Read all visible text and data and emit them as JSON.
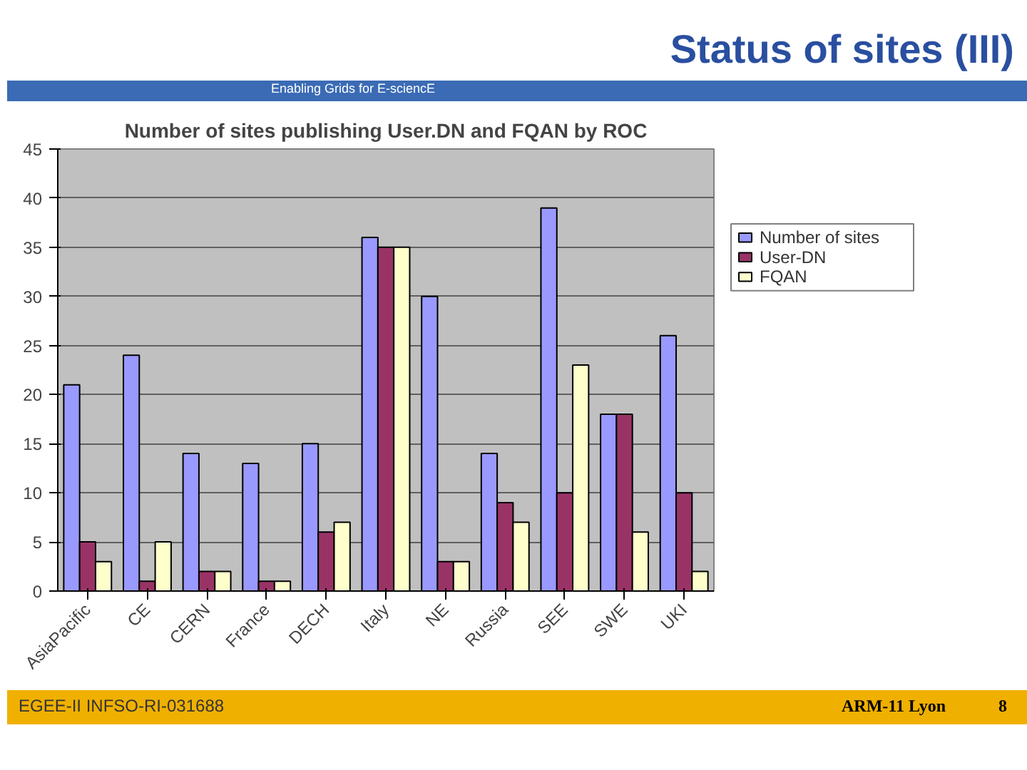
{
  "chart_data": {
    "type": "bar",
    "title": "Number of sites publishing User.DN and FQAN by ROC",
    "categories": [
      "AsiaPacific",
      "CE",
      "CERN",
      "France",
      "DECH",
      "Italy",
      "NE",
      "Russia",
      "SEE",
      "SWE",
      "UKI"
    ],
    "series": [
      {
        "name": "Number of sites",
        "color": "#9999ff",
        "values": [
          21,
          24,
          14,
          13,
          15,
          36,
          30,
          14,
          39,
          18,
          26
        ]
      },
      {
        "name": "User-DN",
        "color": "#993366",
        "values": [
          5,
          1,
          2,
          1,
          6,
          35,
          3,
          9,
          10,
          18,
          10
        ]
      },
      {
        "name": "FQAN",
        "color": "#ffffcc",
        "values": [
          3,
          5,
          2,
          1,
          7,
          35,
          3,
          7,
          23,
          6,
          2
        ]
      }
    ],
    "ylim": [
      0,
      45
    ],
    "yticks": [
      0,
      5,
      10,
      15,
      20,
      25,
      30,
      35,
      40,
      45
    ],
    "grid": "y",
    "legend": "right",
    "annotations": [
      "Status of sites (III)",
      "Enabling Grids for E-sciencE",
      "EGEE-II INFSO-RI-031688",
      "ARM-11 Lyon",
      "8"
    ]
  }
}
